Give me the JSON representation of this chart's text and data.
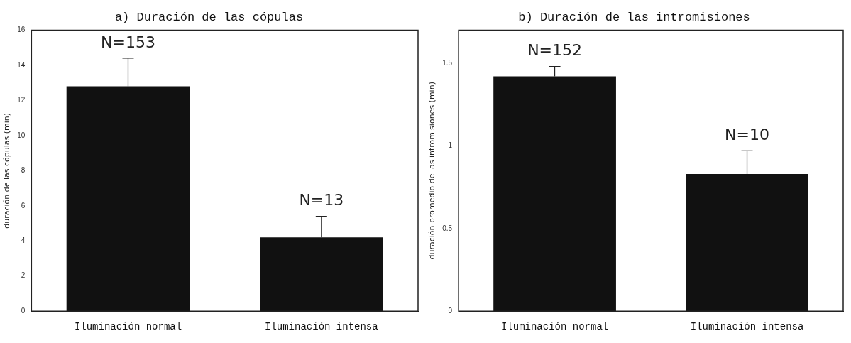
{
  "chart_data": [
    {
      "type": "bar",
      "title": "a) Duración de las cópulas",
      "ylabel": "duración de las cópulas (min)",
      "categories": [
        "Iluminación normal",
        "Iluminación intensa"
      ],
      "values": [
        12.8,
        4.2
      ],
      "color": "#111111",
      "errors": [
        [
          12.8,
          14.4
        ],
        [
          4.2,
          5.4
        ]
      ],
      "ylim": [
        0,
        16
      ],
      "yticks": [
        0,
        2,
        4,
        6,
        8,
        10,
        12,
        14,
        16
      ],
      "grid": false,
      "legend": false,
      "annotations": [
        {
          "text": "N=153",
          "x": "Iluminación normal",
          "y": 14.4
        },
        {
          "text": "N=13",
          "x": "Iluminación intensa",
          "y": 5.4
        }
      ]
    },
    {
      "type": "bar",
      "title": "b) Duración de las intromisiones",
      "ylabel": "duración promedio de las intromisiones (min)",
      "categories": [
        "Iluminación normal",
        "Iluminación intensa"
      ],
      "values": [
        1.42,
        0.83
      ],
      "color": "#111111",
      "errors": [
        [
          1.42,
          1.48
        ],
        [
          0.83,
          0.97
        ]
      ],
      "ylim": [
        0,
        1.7
      ],
      "yticks": [
        0,
        {
          "value": 0.5,
          "label": "0.5"
        },
        1,
        1.5
      ],
      "grid": false,
      "legend": false,
      "annotations": [
        {
          "text": "N=152",
          "x": "Iluminación normal",
          "y": 1.48
        },
        {
          "text": "N=10",
          "x": "Iluminación intensa",
          "y": 0.97
        }
      ]
    }
  ]
}
